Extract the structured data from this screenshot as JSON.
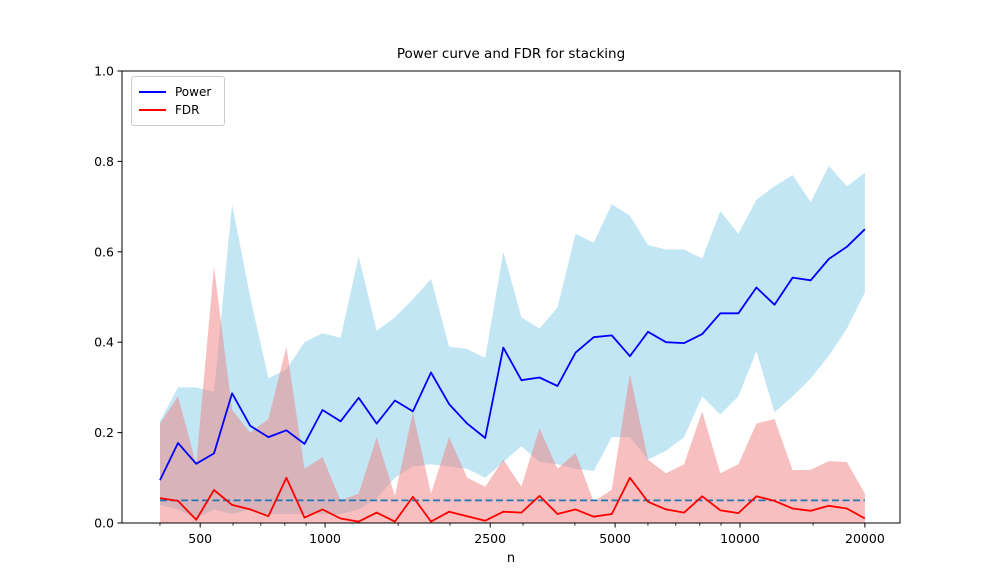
{
  "title": "Power curve and FDR for stacking",
  "xlabel": "n",
  "legend": {
    "items": [
      {
        "label": "Power",
        "color": "#0000ff"
      },
      {
        "label": "FDR",
        "color": "#ff0000"
      }
    ]
  },
  "axes": {
    "y_ticks": [
      {
        "value": 0.0,
        "label": "0.0"
      },
      {
        "value": 0.2,
        "label": "0.2"
      },
      {
        "value": 0.4,
        "label": "0.4"
      },
      {
        "value": 0.6,
        "label": "0.6"
      },
      {
        "value": 0.8,
        "label": "0.8"
      },
      {
        "value": 1.0,
        "label": "1.0"
      }
    ],
    "x_ticks_major": [
      {
        "value": 500,
        "label": "500"
      },
      {
        "value": 1000,
        "label": "1000"
      },
      {
        "value": 2500,
        "label": "2500"
      },
      {
        "value": 5000,
        "label": "5000"
      },
      {
        "value": 10000,
        "label": "10000"
      },
      {
        "value": 20000,
        "label": "20000"
      }
    ],
    "x_ticks_minor": [
      400,
      600,
      700,
      800,
      900,
      1500,
      2000,
      3000,
      4000,
      6000,
      7000,
      8000,
      9000,
      15000
    ]
  },
  "chart_data": {
    "type": "line",
    "title": "Power curve and FDR for stacking",
    "xlabel": "n",
    "ylabel": "",
    "x_scale": "log",
    "xlim": [
      324,
      24300
    ],
    "ylim": [
      0.0,
      1.0
    ],
    "legend_position": "upper left",
    "grid": false,
    "threshold": {
      "value": 0.05,
      "style": "dashed",
      "color": "#1f77b4"
    },
    "band_colors": {
      "power": "rgba(135,206,235,0.5)",
      "fdr": "rgba(240,128,128,0.5)"
    },
    "x": [
      400,
      442,
      489,
      540,
      597,
      660,
      730,
      807,
      892,
      986,
      1090,
      1205,
      1332,
      1473,
      1628,
      1800,
      1990,
      2200,
      2432,
      2689,
      2973,
      3286,
      3633,
      4016,
      4440,
      4909,
      5427,
      6000,
      6633,
      7333,
      8107,
      8963,
      9909,
      10955,
      12112,
      13391,
      14805,
      16368,
      18097,
      20000
    ],
    "series": [
      {
        "name": "Power",
        "color": "#0000ff",
        "values": [
          0.095,
          0.177,
          0.131,
          0.154,
          0.287,
          0.215,
          0.19,
          0.205,
          0.175,
          0.25,
          0.225,
          0.277,
          0.22,
          0.271,
          0.247,
          0.333,
          0.263,
          0.22,
          0.188,
          0.388,
          0.316,
          0.322,
          0.303,
          0.377,
          0.411,
          0.415,
          0.369,
          0.423,
          0.4,
          0.398,
          0.418,
          0.464,
          0.464,
          0.521,
          0.483,
          0.543,
          0.537,
          0.584,
          0.611,
          0.65
        ],
        "upper": [
          0.225,
          0.3,
          0.3,
          0.29,
          0.705,
          0.5,
          0.32,
          0.34,
          0.4,
          0.42,
          0.41,
          0.59,
          0.425,
          0.455,
          0.495,
          0.54,
          0.39,
          0.385,
          0.365,
          0.6,
          0.455,
          0.43,
          0.477,
          0.64,
          0.62,
          0.705,
          0.68,
          0.615,
          0.605,
          0.605,
          0.585,
          0.69,
          0.64,
          0.715,
          0.745,
          0.77,
          0.71,
          0.79,
          0.745,
          0.775
        ],
        "lower": [
          0.04,
          0.03,
          0.01,
          0.03,
          0.02,
          0.03,
          0.02,
          0.02,
          0.02,
          0.02,
          0.02,
          0.03,
          0.055,
          0.1,
          0.125,
          0.13,
          0.125,
          0.12,
          0.1,
          0.135,
          0.17,
          0.135,
          0.13,
          0.12,
          0.115,
          0.19,
          0.19,
          0.14,
          0.16,
          0.19,
          0.28,
          0.24,
          0.28,
          0.38,
          0.245,
          0.28,
          0.32,
          0.37,
          0.43,
          0.51
        ]
      },
      {
        "name": "FDR",
        "color": "#ff0000",
        "values": [
          0.055,
          0.049,
          0.007,
          0.073,
          0.04,
          0.03,
          0.015,
          0.1,
          0.012,
          0.03,
          0.01,
          0.003,
          0.023,
          0.003,
          0.058,
          0.003,
          0.025,
          0.015,
          0.005,
          0.025,
          0.023,
          0.06,
          0.02,
          0.03,
          0.014,
          0.02,
          0.1,
          0.047,
          0.03,
          0.023,
          0.059,
          0.028,
          0.022,
          0.059,
          0.049,
          0.032,
          0.027,
          0.038,
          0.032,
          0.01
        ],
        "upper": [
          0.22,
          0.28,
          0.13,
          0.567,
          0.25,
          0.2,
          0.23,
          0.39,
          0.12,
          0.146,
          0.05,
          0.065,
          0.19,
          0.06,
          0.245,
          0.065,
          0.19,
          0.1,
          0.08,
          0.14,
          0.08,
          0.21,
          0.12,
          0.155,
          0.047,
          0.074,
          0.33,
          0.14,
          0.11,
          0.13,
          0.247,
          0.11,
          0.13,
          0.22,
          0.23,
          0.117,
          0.118,
          0.137,
          0.135,
          0.065
        ],
        "lower": [
          0,
          0,
          0,
          0,
          0,
          0,
          0,
          0,
          0,
          0,
          0,
          0,
          0,
          0,
          0,
          0,
          0,
          0,
          0,
          0,
          0,
          0,
          0,
          0,
          0,
          0,
          0,
          0,
          0,
          0,
          0,
          0,
          0,
          0,
          0,
          0,
          0,
          0,
          0,
          0
        ]
      }
    ]
  }
}
